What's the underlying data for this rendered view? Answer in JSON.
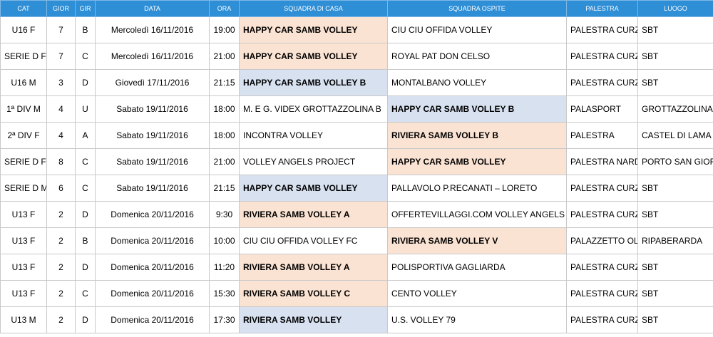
{
  "headers": [
    "CAT",
    "GIOR",
    "GIR",
    "DATA",
    "ORA",
    "SQUADRA DI CASA",
    "SQUADRA OSPITE",
    "PALESTRA",
    "LUOGO"
  ],
  "colors": {
    "header_bg": "#2f8fd6",
    "female_cat": "#e0151d",
    "male_cat": "#1f5fae",
    "highlight_orange": "#fbe3d3",
    "highlight_blue": "#d7e1f0"
  },
  "rows": [
    {
      "cat": "U16 F",
      "gender": "f",
      "gior": "7",
      "gir": "B",
      "data": "Mercoledì 16/11/2016",
      "ora": "19:00",
      "casa": "HAPPY CAR SAMB VOLLEY",
      "ospite": "CIU CIU OFFIDA VOLLEY",
      "palestra": "PALESTRA CURZI",
      "luogo": "SBT",
      "highlight": "casa",
      "color": "orange"
    },
    {
      "cat": "SERIE D F",
      "gender": "f",
      "gior": "7",
      "gir": "C",
      "data": "Mercoledì 16/11/2016",
      "ora": "21:00",
      "casa": "HAPPY CAR SAMB VOLLEY",
      "ospite": "ROYAL PAT DON CELSO",
      "palestra": "PALESTRA CURZI",
      "luogo": "SBT",
      "highlight": "casa",
      "color": "orange"
    },
    {
      "cat": "U16 M",
      "gender": "m",
      "gior": "3",
      "gir": "D",
      "data": "Giovedì 17/11/2016",
      "ora": "21:15",
      "casa": "HAPPY CAR SAMB VOLLEY B",
      "ospite": "MONTALBANO VOLLEY",
      "palestra": "PALESTRA CURZI",
      "luogo": "SBT",
      "highlight": "casa",
      "color": "blue"
    },
    {
      "cat": "1ª DIV M",
      "gender": "m",
      "gior": "4",
      "gir": "U",
      "data": "Sabato 19/11/2016",
      "ora": "18:00",
      "casa": "M. E G. VIDEX GROTTAZZOLINA B",
      "ospite": "HAPPY CAR SAMB VOLLEY B",
      "palestra": "PALASPORT",
      "luogo": "GROTTAZZOLINA",
      "highlight": "ospite",
      "color": "blue"
    },
    {
      "cat": "2ª DIV F",
      "gender": "f",
      "gior": "4",
      "gir": "A",
      "data": "Sabato 19/11/2016",
      "ora": "18:00",
      "casa": "INCONTRA VOLLEY",
      "ospite": "RIVIERA SAMB VOLLEY B",
      "palestra": "PALESTRA",
      "luogo": "CASTEL DI LAMA",
      "highlight": "ospite",
      "color": "orange"
    },
    {
      "cat": "SERIE D F",
      "gender": "f",
      "gior": "8",
      "gir": "C",
      "data": "Sabato 19/11/2016",
      "ora": "21:00",
      "casa": "VOLLEY ANGELS PROJECT",
      "ospite": "HAPPY CAR SAMB VOLLEY",
      "palestra": "PALESTRA NARDI",
      "luogo": "PORTO SAN GIORGIO",
      "highlight": "ospite",
      "color": "orange"
    },
    {
      "cat": "SERIE D M",
      "gender": "m",
      "gior": "6",
      "gir": "C",
      "data": "Sabato 19/11/2016",
      "ora": "21:15",
      "casa": "HAPPY CAR SAMB VOLLEY",
      "ospite": "PALLAVOLO P.RECANATI – LORETO",
      "palestra": "PALESTRA CURZI",
      "luogo": "SBT",
      "highlight": "casa",
      "color": "blue"
    },
    {
      "cat": "U13 F",
      "gender": "f",
      "gior": "2",
      "gir": "D",
      "data": "Domenica 20/11/2016",
      "ora": "9:30",
      "casa": "RIVIERA SAMB VOLLEY A",
      "ospite": "OFFERTEVILLAGGI.COM VOLLEY ANGELS",
      "palestra": "PALESTRA CURZI",
      "luogo": "SBT",
      "highlight": "casa",
      "color": "orange"
    },
    {
      "cat": "U13 F",
      "gender": "f",
      "gior": "2",
      "gir": "B",
      "data": "Domenica 20/11/2016",
      "ora": "10:00",
      "casa": "CIU CIU OFFIDA VOLLEY FC",
      "ospite": "RIVIERA SAMB VOLLEY V",
      "palestra": "PALAZZETTO OLIMPIA",
      "luogo": "RIPABERARDA",
      "highlight": "ospite",
      "color": "orange"
    },
    {
      "cat": "U13 F",
      "gender": "f",
      "gior": "2",
      "gir": "D",
      "data": "Domenica 20/11/2016",
      "ora": "11:20",
      "casa": "RIVIERA SAMB VOLLEY A",
      "ospite": "POLISPORTIVA GAGLIARDA",
      "palestra": "PALESTRA CURZI",
      "luogo": "SBT",
      "highlight": "casa",
      "color": "orange"
    },
    {
      "cat": "U13 F",
      "gender": "f",
      "gior": "2",
      "gir": "C",
      "data": "Domenica 20/11/2016",
      "ora": "15:30",
      "casa": "RIVIERA SAMB VOLLEY C",
      "ospite": "CENTO VOLLEY",
      "palestra": "PALESTRA CURZI",
      "luogo": "SBT",
      "highlight": "casa",
      "color": "orange"
    },
    {
      "cat": "U13 M",
      "gender": "m",
      "gior": "2",
      "gir": "D",
      "data": "Domenica 20/11/2016",
      "ora": "17:30",
      "casa": "RIVIERA SAMB VOLLEY",
      "ospite": "U.S. VOLLEY 79",
      "palestra": "PALESTRA CURZI",
      "luogo": "SBT",
      "highlight": "casa",
      "color": "blue"
    }
  ]
}
